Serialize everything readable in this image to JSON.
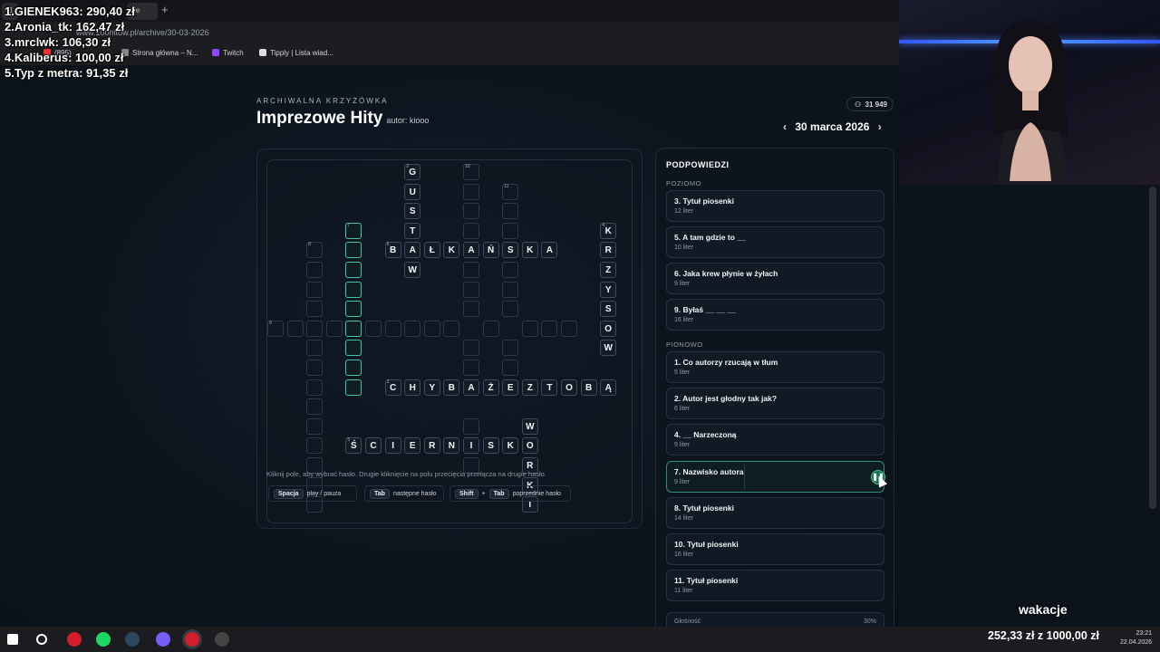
{
  "browser": {
    "tabs": [
      {
        "label": "1"
      },
      {
        "label": "ie"
      }
    ],
    "new_tab": "+",
    "address": "www.100hitow.pl/archive/30-03-2026",
    "bookmarks": [
      {
        "label": "(895)"
      },
      {
        "label": "Strona główna – N..."
      },
      {
        "label": "Twitch"
      },
      {
        "label": "Tipply | Lista wiad..."
      }
    ]
  },
  "donations": [
    "1.GIENEK963: 290,40 zł",
    "2.Aronia_tk: 162,47 zł",
    "3.mrclwk: 106,30 zł",
    "4.Kaliberus: 100,00 zł",
    "5.Typ z metra: 91,35 zł"
  ],
  "header": {
    "kicker": "ARCHIWALNA KRZYŻÓWKA",
    "title": "Imprezowe Hity",
    "author": "autor: kiooo",
    "players": "31 949",
    "date": "30 marca 2026",
    "prev": "‹",
    "next": "›"
  },
  "board": {
    "hint": "Kliknij pole, aby wybrać hasło. Drugie kliknięcie na polu przecięcia przełącza na drugie hasło.",
    "keys": [
      {
        "keys": [
          "Spacja"
        ],
        "label": "play / pauza"
      },
      {
        "keys": [
          "Tab"
        ],
        "label": "następne hasło"
      },
      {
        "keys": [
          "Shift",
          "Tab"
        ],
        "sep": "+",
        "label": "poprzednie hasło"
      }
    ]
  },
  "clues": {
    "title": "PODPOWIEDZI",
    "across_label": "POZIOMO",
    "down_label": "PIONOWO",
    "across": [
      {
        "title": "3. Tytuł piosenki",
        "sub": "12 liter"
      },
      {
        "title": "5. A tam gdzie to __",
        "sub": "10 liter"
      },
      {
        "title": "6. Jaka krew płynie w żyłach",
        "sub": "9 liter"
      },
      {
        "title": "9. Byłaś __ __ __",
        "sub": "16 liter"
      }
    ],
    "down": [
      {
        "title": "1. Co autorzy rzucają w tłum",
        "sub": "5 liter"
      },
      {
        "title": "2. Autor jest głodny tak jak?",
        "sub": "6 liter"
      },
      {
        "title": "4. __ Narzeczoną",
        "sub": "9 liter"
      },
      {
        "title": "7. Nazwisko autora",
        "sub": "9 liter",
        "active": true
      },
      {
        "title": "8. Tytuł piosenki",
        "sub": "14 liter"
      },
      {
        "title": "10. Tytuł piosenki",
        "sub": "16 liter"
      },
      {
        "title": "11. Tytuł piosenki",
        "sub": "11 liter"
      }
    ],
    "pause_icon": "pause-icon",
    "progress_label": "Głośność",
    "progress_pct": "30%"
  },
  "overlay": {
    "wakacje": "wakacje",
    "goal": "252,33 zł z 1000,00 zł",
    "time": "23:21",
    "date": "22.04.2026"
  },
  "colors": {
    "accent": "#45c4a8",
    "active_btn": "#1f6b4e"
  }
}
